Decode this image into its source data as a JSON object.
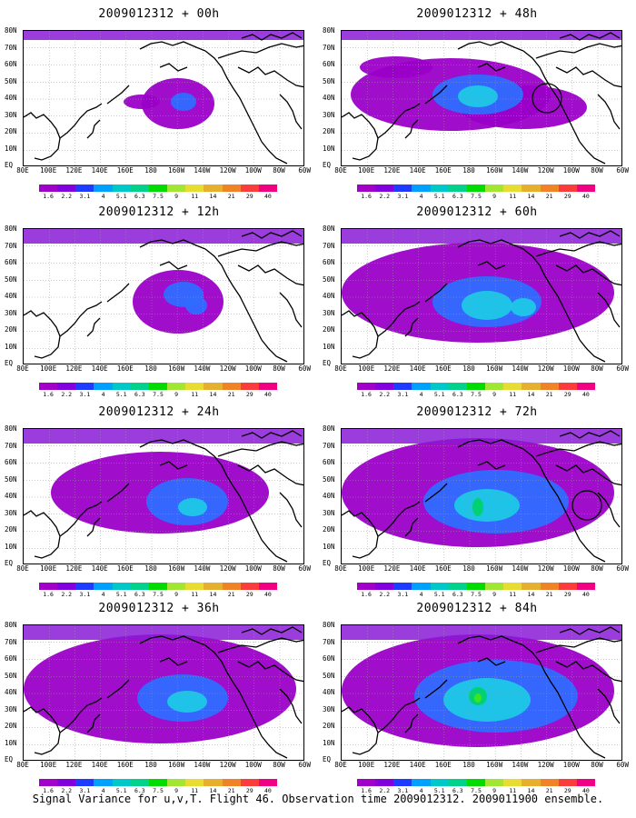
{
  "panels": [
    {
      "title": "2009012312 + 00h"
    },
    {
      "title": "2009012312 + 48h"
    },
    {
      "title": "2009012312 + 12h"
    },
    {
      "title": "2009012312 + 60h"
    },
    {
      "title": "2009012312 + 24h"
    },
    {
      "title": "2009012312 + 72h"
    },
    {
      "title": "2009012312 + 36h"
    },
    {
      "title": "2009012312 + 84h"
    }
  ],
  "lat_labels": [
    "80N",
    "70N",
    "60N",
    "50N",
    "40N",
    "30N",
    "20N",
    "10N",
    "EQ"
  ],
  "lon_labels": [
    "80E",
    "100E",
    "120E",
    "140E",
    "160E",
    "180",
    "160W",
    "140W",
    "120W",
    "100W",
    "80W",
    "60W"
  ],
  "colorbar": {
    "labels": [
      "1.6",
      "2.2",
      "3.1",
      "4",
      "5.1",
      "6.3",
      "7.5",
      "9",
      "11",
      "14",
      "21",
      "29",
      "40"
    ],
    "colors": [
      "#a000c8",
      "#8200dc",
      "#1e3cff",
      "#00a0ff",
      "#00c8c8",
      "#00d28c",
      "#00dc00",
      "#a0e632",
      "#e6dc32",
      "#e6af2d",
      "#f08228",
      "#fa3c3c",
      "#f00082"
    ]
  },
  "footer": "Signal Variance for u,v,T. Flight 46. Observation time 2009012312. 2009011900 ensemble."
}
